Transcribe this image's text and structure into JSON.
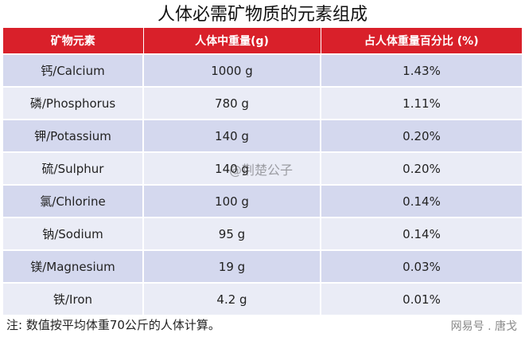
{
  "title": "人体必需矿物质的元素组成",
  "table": {
    "headers": [
      "矿物元素",
      "人体中重量(g)",
      "占人体重量百分比 (%)"
    ],
    "rows": [
      [
        "钙/Calcium",
        "1000 g",
        "1.43%"
      ],
      [
        "磷/Phosphorus",
        "780 g",
        "1.11%"
      ],
      [
        "钾/Potassium",
        "140 g",
        "0.20%"
      ],
      [
        "硫/Sulphur",
        "140 g",
        "0.20%"
      ],
      [
        "氯/Chlorine",
        "100 g",
        "0.14%"
      ],
      [
        "钠/Sodium",
        "95 g",
        "0.14%"
      ],
      [
        "镁/Magnesium",
        "19 g",
        "0.03%"
      ],
      [
        "铁/Iron",
        "4.2 g",
        "0.01%"
      ]
    ]
  },
  "note": "注:  数值按平均体重70公斤的人体计算。",
  "watermark": "@荆楚公子",
  "credit": "网易号 . 唐戈"
}
